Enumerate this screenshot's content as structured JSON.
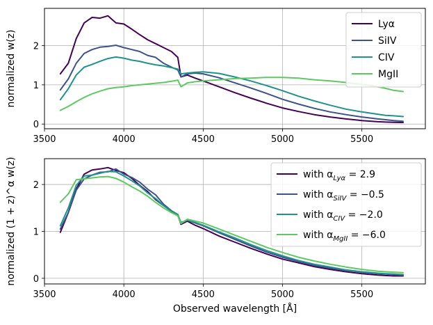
{
  "chart_data": [
    {
      "type": "line",
      "panel": "top",
      "title": "",
      "xlabel": "",
      "ylabel": "normalized w(z)",
      "xlim": [
        3500,
        5900
      ],
      "ylim": [
        -0.12,
        2.95
      ],
      "xticks": [
        3500,
        4000,
        4500,
        5000,
        5500
      ],
      "xtick_labels": [
        "3500",
        "4000",
        "4500",
        "5000",
        "5500"
      ],
      "yticks": [
        0,
        1,
        2
      ],
      "ytick_labels": [
        "0",
        "1",
        "2"
      ],
      "grid": true,
      "legend_position": "top-right",
      "x": [
        3600,
        3650,
        3700,
        3750,
        3800,
        3850,
        3900,
        3950,
        4000,
        4050,
        4100,
        4150,
        4200,
        4250,
        4300,
        4340,
        4360,
        4400,
        4450,
        4500,
        4600,
        4700,
        4800,
        4900,
        5000,
        5100,
        5200,
        5300,
        5400,
        5500,
        5600,
        5650,
        5700,
        5760
      ],
      "series": [
        {
          "name": "Lyα",
          "color": "#440154",
          "values": [
            1.28,
            1.55,
            2.18,
            2.58,
            2.72,
            2.7,
            2.76,
            2.58,
            2.55,
            2.42,
            2.28,
            2.15,
            2.05,
            1.95,
            1.85,
            1.7,
            1.2,
            1.25,
            1.17,
            1.1,
            0.95,
            0.8,
            0.66,
            0.53,
            0.41,
            0.32,
            0.24,
            0.18,
            0.13,
            0.09,
            0.06,
            0.05,
            0.045,
            0.04
          ]
        },
        {
          "name": "SiIV",
          "color": "#3b528b",
          "values": [
            0.87,
            1.15,
            1.55,
            1.8,
            1.9,
            1.96,
            1.98,
            2.01,
            1.95,
            1.9,
            1.85,
            1.75,
            1.7,
            1.55,
            1.45,
            1.38,
            1.2,
            1.28,
            1.3,
            1.28,
            1.18,
            1.05,
            0.92,
            0.78,
            0.63,
            0.51,
            0.4,
            0.31,
            0.24,
            0.18,
            0.13,
            0.11,
            0.09,
            0.07
          ]
        },
        {
          "name": "CIV",
          "color": "#21918c",
          "values": [
            0.62,
            0.9,
            1.25,
            1.45,
            1.52,
            1.6,
            1.67,
            1.71,
            1.68,
            1.63,
            1.6,
            1.55,
            1.51,
            1.48,
            1.44,
            1.4,
            1.28,
            1.3,
            1.32,
            1.33,
            1.29,
            1.2,
            1.1,
            0.98,
            0.85,
            0.71,
            0.59,
            0.48,
            0.38,
            0.31,
            0.25,
            0.22,
            0.21,
            0.19
          ]
        },
        {
          "name": "MgII",
          "color": "#5ec962",
          "values": [
            0.35,
            0.45,
            0.57,
            0.68,
            0.77,
            0.84,
            0.9,
            0.93,
            0.95,
            0.98,
            1.0,
            1.02,
            1.04,
            1.06,
            1.09,
            1.12,
            0.95,
            1.05,
            1.08,
            1.1,
            1.13,
            1.16,
            1.17,
            1.19,
            1.19,
            1.17,
            1.13,
            1.1,
            1.06,
            1.01,
            0.95,
            0.91,
            0.86,
            0.83
          ]
        }
      ]
    },
    {
      "type": "line",
      "panel": "bottom",
      "title": "",
      "xlabel": "Observed wavelength [Å]",
      "ylabel": "normalized (1 + z)^α w(z)",
      "xlim": [
        3500,
        5900
      ],
      "ylim": [
        -0.12,
        2.55
      ],
      "xticks": [
        3500,
        4000,
        4500,
        5000,
        5500
      ],
      "xtick_labels": [
        "3500",
        "4000",
        "4500",
        "5000",
        "5500"
      ],
      "yticks": [
        0,
        1,
        2
      ],
      "ytick_labels": [
        "0",
        "1",
        "2"
      ],
      "grid": true,
      "legend_position": "top-right",
      "x": [
        3600,
        3650,
        3700,
        3750,
        3800,
        3850,
        3900,
        3950,
        4000,
        4050,
        4100,
        4150,
        4200,
        4250,
        4300,
        4340,
        4360,
        4400,
        4450,
        4500,
        4600,
        4700,
        4800,
        4900,
        5000,
        5100,
        5200,
        5300,
        5400,
        5500,
        5600,
        5650,
        5700,
        5760
      ],
      "series": [
        {
          "name": "with α_Lyα = 2.9",
          "prefix": "with α",
          "sub": "Lyα",
          "suffix": " = 2.9",
          "color": "#440154",
          "values": [
            0.98,
            1.4,
            1.9,
            2.22,
            2.31,
            2.33,
            2.36,
            2.3,
            2.25,
            2.13,
            1.98,
            1.85,
            1.68,
            1.55,
            1.43,
            1.35,
            1.15,
            1.22,
            1.13,
            1.06,
            0.9,
            0.77,
            0.64,
            0.52,
            0.41,
            0.33,
            0.25,
            0.19,
            0.14,
            0.1,
            0.07,
            0.06,
            0.05,
            0.05
          ]
        },
        {
          "name": "with α_SiIV = −0.5",
          "prefix": "with α",
          "sub": "SiIV",
          "suffix": " = −0.5",
          "color": "#3b528b",
          "values": [
            1.05,
            1.4,
            1.88,
            2.12,
            2.2,
            2.26,
            2.27,
            2.33,
            2.22,
            2.15,
            2.05,
            1.9,
            1.78,
            1.58,
            1.44,
            1.36,
            1.17,
            1.24,
            1.18,
            1.12,
            0.97,
            0.83,
            0.69,
            0.56,
            0.45,
            0.36,
            0.28,
            0.22,
            0.17,
            0.13,
            0.1,
            0.09,
            0.08,
            0.07
          ]
        },
        {
          "name": "with α_CIV = −2.0",
          "prefix": "with α",
          "sub": "CIV",
          "suffix": " = −2.0",
          "color": "#21918c",
          "values": [
            1.12,
            1.5,
            1.98,
            2.18,
            2.2,
            2.24,
            2.28,
            2.27,
            2.18,
            2.08,
            1.97,
            1.82,
            1.7,
            1.55,
            1.43,
            1.36,
            1.19,
            1.24,
            1.19,
            1.13,
            0.99,
            0.86,
            0.72,
            0.59,
            0.48,
            0.38,
            0.3,
            0.24,
            0.18,
            0.14,
            0.11,
            0.1,
            0.09,
            0.08
          ]
        },
        {
          "name": "with α_MgII = −6.0",
          "prefix": "with α",
          "sub": "MgII",
          "suffix": " = −6.0",
          "color": "#5ec962",
          "values": [
            1.62,
            1.8,
            2.1,
            2.12,
            2.14,
            2.16,
            2.17,
            2.13,
            2.05,
            1.95,
            1.86,
            1.75,
            1.62,
            1.5,
            1.4,
            1.33,
            1.17,
            1.26,
            1.22,
            1.18,
            1.05,
            0.92,
            0.79,
            0.66,
            0.55,
            0.45,
            0.37,
            0.3,
            0.24,
            0.19,
            0.15,
            0.14,
            0.13,
            0.12
          ]
        }
      ]
    }
  ]
}
